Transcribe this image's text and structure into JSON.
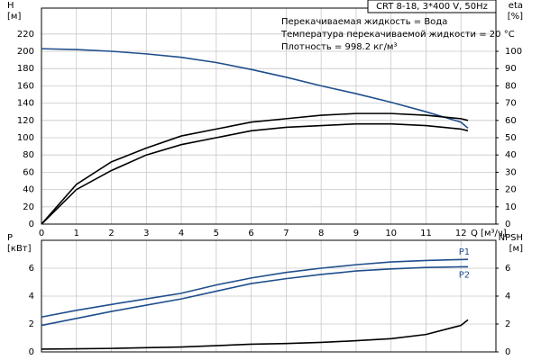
{
  "chart_data": [
    {
      "type": "line",
      "model": "CRT 8-18, 3*400 V, 50Hz",
      "annotations": [
        "Перекачиваемая жидкость = Вода",
        "Температура перекачиваемой жидкости = 20 °C",
        "Плотность = 998.2 кг/м³"
      ],
      "ylabel": "H",
      "ylabel_unit": "[м]",
      "y2label": "eta",
      "y2label_unit": "[%]",
      "xlabel": "Q [м³/ч]",
      "x": [
        0,
        1,
        2,
        3,
        4,
        5,
        6,
        7,
        8,
        9,
        10,
        11,
        12,
        12.2
      ],
      "xlim": [
        0,
        13
      ],
      "xticks": [
        0,
        1,
        2,
        3,
        4,
        5,
        6,
        7,
        8,
        9,
        10,
        11,
        12
      ],
      "ylim": [
        0,
        250
      ],
      "yticks": [
        0,
        20,
        40,
        60,
        80,
        100,
        120,
        140,
        160,
        180,
        200,
        220
      ],
      "y2lim": [
        0,
        125
      ],
      "y2ticks": [
        0,
        10,
        20,
        30,
        40,
        50,
        60,
        70,
        80,
        90,
        100
      ],
      "grid": true,
      "series": [
        {
          "color": "#1f4e8c",
          "values": [
            203,
            202,
            200,
            197,
            193,
            187,
            179,
            170,
            160,
            151,
            141,
            130,
            118,
            111
          ]
        },
        {
          "color": "#000000",
          "axis": "y2",
          "values": [
            0,
            23,
            36,
            44,
            51,
            55,
            59,
            61,
            63,
            64,
            64,
            63,
            61,
            60
          ]
        },
        {
          "color": "#000000",
          "axis": "y2",
          "values": [
            0,
            20,
            31,
            40,
            46,
            50,
            54,
            56,
            57,
            58,
            58,
            57,
            55,
            54
          ]
        }
      ]
    },
    {
      "type": "line",
      "ylabel": "P",
      "ylabel_unit": "[кВт]",
      "y2label": "NPSH",
      "y2label_unit": "[м]",
      "x": [
        0,
        1,
        2,
        3,
        4,
        5,
        6,
        7,
        8,
        9,
        10,
        11,
        12,
        12.2
      ],
      "xlim": [
        0,
        13
      ],
      "xticks": [
        0,
        1,
        2,
        3,
        4,
        5,
        6,
        7,
        8,
        9,
        10,
        11,
        12
      ],
      "ylim": [
        0,
        8
      ],
      "yticks": [
        0,
        2,
        4,
        6
      ],
      "y2lim": [
        0,
        8
      ],
      "y2ticks": [
        0,
        2,
        4,
        6
      ],
      "grid": true,
      "series": [
        {
          "name": "P1",
          "color": "#1f4e8c",
          "values": [
            2.5,
            2.98,
            3.4,
            3.8,
            4.2,
            4.8,
            5.3,
            5.7,
            6.0,
            6.25,
            6.45,
            6.55,
            6.62,
            6.63
          ]
        },
        {
          "name": "P2",
          "color": "#1f4e8c",
          "values": [
            1.9,
            2.4,
            2.9,
            3.35,
            3.8,
            4.35,
            4.9,
            5.25,
            5.55,
            5.8,
            5.95,
            6.05,
            6.1,
            6.1
          ]
        },
        {
          "color": "#000000",
          "axis": "y2",
          "values": [
            0.2,
            0.22,
            0.25,
            0.3,
            0.35,
            0.45,
            0.55,
            0.6,
            0.68,
            0.8,
            0.95,
            1.25,
            1.9,
            2.3
          ]
        }
      ]
    }
  ]
}
